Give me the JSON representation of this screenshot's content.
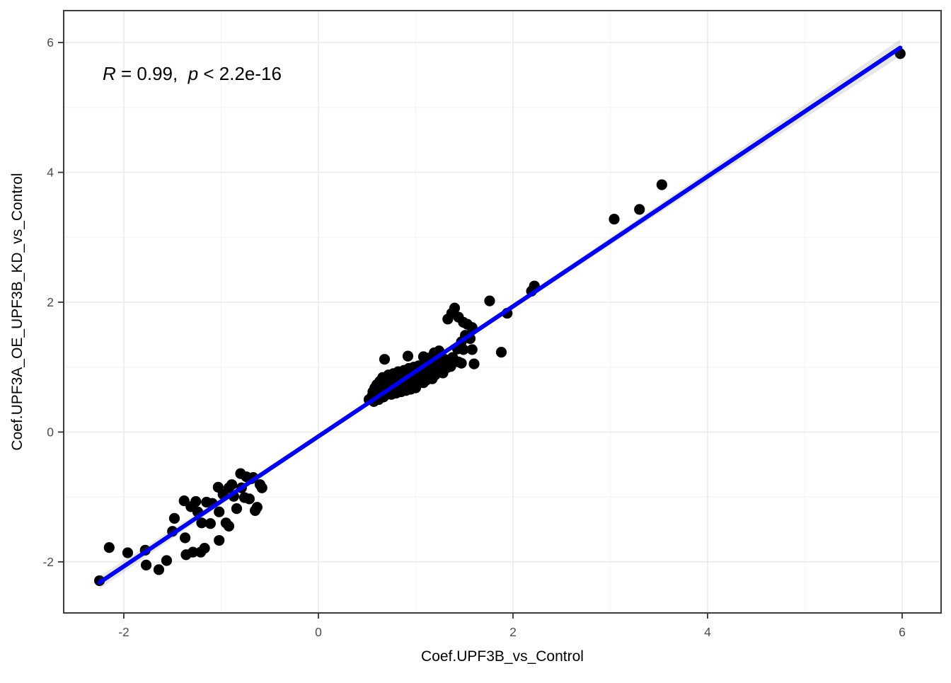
{
  "chart_data": {
    "type": "scatter",
    "title": "",
    "xlabel": "Coef.UPF3B_vs_Control",
    "ylabel": "Coef.UPF3A_OE_UPF3B_KD_vs_Control",
    "annotation": {
      "text": "R = 0.99, p < 2.2e-16",
      "parts": [
        {
          "text": "R",
          "italic": true
        },
        {
          "text": " = 0.99,  ",
          "italic": false
        },
        {
          "text": "p",
          "italic": true
        },
        {
          "text": " < 2.2e-16",
          "italic": false
        }
      ]
    },
    "xlim": [
      -2.618,
      6.4
    ],
    "ylim": [
      -2.787,
      6.492
    ],
    "x_ticks": [
      -2,
      0,
      2,
      4,
      6
    ],
    "y_ticks": [
      -2,
      0,
      2,
      4,
      6
    ],
    "x_minor_ticks": [
      -1,
      1,
      3,
      5
    ],
    "y_minor_ticks": [
      -1,
      1,
      3,
      5
    ],
    "grid": true,
    "legend": "none",
    "fit_line": {
      "x1": -2.25,
      "y1": -2.32,
      "x2": 5.98,
      "y2": 5.92
    },
    "band_halfwidths": [
      [
        -2.25,
        0.1
      ],
      [
        -1.0,
        0.05
      ],
      [
        0.5,
        0.035
      ],
      [
        1.5,
        0.035
      ],
      [
        2.2,
        0.045
      ],
      [
        3.5,
        0.065
      ],
      [
        5.0,
        0.1
      ],
      [
        5.98,
        0.13
      ]
    ],
    "colors": {
      "point": "#000000",
      "line": "#0000EE",
      "band": "rgba(120,120,120,0.18)",
      "grid_major": "#ebebeb",
      "grid_minor": "#f4f4f4",
      "panel_border": "#3c3c3c",
      "tick": "#333333",
      "tick_label": "#4d4d4d"
    },
    "points": [
      [
        -2.25,
        -2.29
      ],
      [
        -2.15,
        -1.78
      ],
      [
        -1.96,
        -1.86
      ],
      [
        -1.78,
        -1.82
      ],
      [
        -1.77,
        -2.05
      ],
      [
        -1.64,
        -2.12
      ],
      [
        -1.56,
        -1.98
      ],
      [
        -1.5,
        -1.53
      ],
      [
        -1.48,
        -1.33
      ],
      [
        -1.38,
        -1.06
      ],
      [
        -1.37,
        -1.63
      ],
      [
        -1.36,
        -1.89
      ],
      [
        -1.31,
        -1.15
      ],
      [
        -1.29,
        -1.85
      ],
      [
        -1.26,
        -1.07
      ],
      [
        -1.24,
        -1.23
      ],
      [
        -1.21,
        -1.85
      ],
      [
        -1.2,
        -1.4
      ],
      [
        -1.17,
        -1.79
      ],
      [
        -1.15,
        -1.08
      ],
      [
        -1.11,
        -1.41
      ],
      [
        -1.09,
        -1.1
      ],
      [
        -1.03,
        -0.85
      ],
      [
        -1.02,
        -1.23
      ],
      [
        -1.02,
        -1.67
      ],
      [
        -0.98,
        -0.96
      ],
      [
        -0.95,
        -1.4
      ],
      [
        -0.92,
        -0.86
      ],
      [
        -0.92,
        -1.45
      ],
      [
        -0.89,
        -0.81
      ],
      [
        -0.87,
        -0.99
      ],
      [
        -0.84,
        -1.18
      ],
      [
        -0.8,
        -0.64
      ],
      [
        -0.79,
        -0.86
      ],
      [
        -0.76,
        -1.01
      ],
      [
        -0.74,
        -0.69
      ],
      [
        -0.71,
        -1.03
      ],
      [
        -0.69,
        -0.72
      ],
      [
        -0.67,
        -0.7
      ],
      [
        -0.65,
        -1.21
      ],
      [
        -0.63,
        -1.16
      ],
      [
        -0.6,
        -0.81
      ],
      [
        -0.58,
        -0.86
      ],
      [
        0.52,
        0.5
      ],
      [
        0.55,
        0.55
      ],
      [
        0.56,
        0.62
      ],
      [
        0.57,
        0.47
      ],
      [
        0.58,
        0.68
      ],
      [
        0.6,
        0.55
      ],
      [
        0.6,
        0.73
      ],
      [
        0.61,
        0.6
      ],
      [
        0.62,
        0.5
      ],
      [
        0.63,
        0.66
      ],
      [
        0.63,
        0.78
      ],
      [
        0.64,
        0.57
      ],
      [
        0.65,
        0.7
      ],
      [
        0.66,
        0.62
      ],
      [
        0.66,
        0.84
      ],
      [
        0.67,
        0.54
      ],
      [
        0.68,
        0.75
      ],
      [
        0.69,
        0.65
      ],
      [
        0.7,
        0.58
      ],
      [
        0.7,
        0.8
      ],
      [
        0.71,
        0.7
      ],
      [
        0.72,
        0.62
      ],
      [
        0.72,
        0.88
      ],
      [
        0.73,
        0.75
      ],
      [
        0.74,
        0.66
      ],
      [
        0.75,
        0.58
      ],
      [
        0.75,
        0.82
      ],
      [
        0.76,
        0.72
      ],
      [
        0.77,
        0.64
      ],
      [
        0.77,
        0.9
      ],
      [
        0.78,
        0.77
      ],
      [
        0.79,
        0.68
      ],
      [
        0.8,
        0.6
      ],
      [
        0.8,
        0.85
      ],
      [
        0.81,
        0.73
      ],
      [
        0.82,
        0.65
      ],
      [
        0.82,
        0.93
      ],
      [
        0.83,
        0.79
      ],
      [
        0.84,
        0.7
      ],
      [
        0.85,
        0.62
      ],
      [
        0.85,
        0.88
      ],
      [
        0.86,
        0.76
      ],
      [
        0.87,
        0.67
      ],
      [
        0.88,
        0.95
      ],
      [
        0.88,
        0.81
      ],
      [
        0.89,
        0.72
      ],
      [
        0.9,
        0.64
      ],
      [
        0.9,
        0.9
      ],
      [
        0.91,
        0.78
      ],
      [
        0.92,
        0.7
      ],
      [
        0.93,
        0.98
      ],
      [
        0.93,
        0.84
      ],
      [
        0.94,
        0.74
      ],
      [
        0.95,
        0.66
      ],
      [
        0.95,
        0.92
      ],
      [
        0.96,
        0.8
      ],
      [
        0.97,
        0.72
      ],
      [
        0.98,
        1.0
      ],
      [
        0.98,
        0.86
      ],
      [
        0.99,
        0.77
      ],
      [
        1.0,
        0.68
      ],
      [
        1.0,
        0.94
      ],
      [
        1.01,
        0.82
      ],
      [
        1.02,
        0.74
      ],
      [
        1.03,
        1.02
      ],
      [
        1.04,
        0.88
      ],
      [
        1.05,
        0.78
      ],
      [
        1.06,
        0.95
      ],
      [
        1.07,
        0.84
      ],
      [
        1.08,
        0.76
      ],
      [
        1.09,
        1.05
      ],
      [
        1.1,
        0.9
      ],
      [
        1.11,
        0.8
      ],
      [
        1.12,
        0.97
      ],
      [
        1.13,
        0.86
      ],
      [
        1.15,
        1.08
      ],
      [
        1.16,
        0.92
      ],
      [
        1.17,
        0.82
      ],
      [
        1.19,
        1.0
      ],
      [
        1.2,
        0.88
      ],
      [
        1.22,
        1.1
      ],
      [
        1.24,
        0.95
      ],
      [
        1.26,
        1.03
      ],
      [
        1.28,
        0.91
      ],
      [
        1.3,
        1.12
      ],
      [
        1.32,
        0.99
      ],
      [
        1.35,
        1.06
      ],
      [
        1.38,
        1.15
      ],
      [
        0.68,
        1.12
      ],
      [
        0.92,
        1.17
      ],
      [
        1.08,
        1.16
      ],
      [
        1.13,
        1.14
      ],
      [
        1.19,
        1.22
      ],
      [
        1.24,
        1.25
      ],
      [
        1.29,
        1.0
      ],
      [
        1.36,
        1.01
      ],
      [
        1.4,
        1.1
      ],
      [
        1.44,
        1.08
      ],
      [
        1.47,
        1.06
      ],
      [
        1.43,
        1.28
      ],
      [
        1.49,
        1.27
      ],
      [
        1.58,
        1.27
      ],
      [
        1.51,
        1.49
      ],
      [
        1.56,
        1.44
      ],
      [
        1.47,
        1.39
      ],
      [
        1.33,
        1.74
      ],
      [
        1.37,
        1.83
      ],
      [
        1.4,
        1.91
      ],
      [
        1.44,
        1.77
      ],
      [
        1.49,
        1.69
      ],
      [
        1.53,
        1.66
      ],
      [
        1.58,
        1.61
      ],
      [
        1.6,
        1.05
      ],
      [
        1.76,
        2.02
      ],
      [
        1.88,
        1.23
      ],
      [
        1.94,
        1.83
      ],
      [
        2.19,
        2.17
      ],
      [
        2.22,
        2.25
      ],
      [
        3.04,
        3.28
      ],
      [
        3.3,
        3.43
      ],
      [
        3.53,
        3.81
      ],
      [
        5.98,
        5.83
      ]
    ]
  }
}
